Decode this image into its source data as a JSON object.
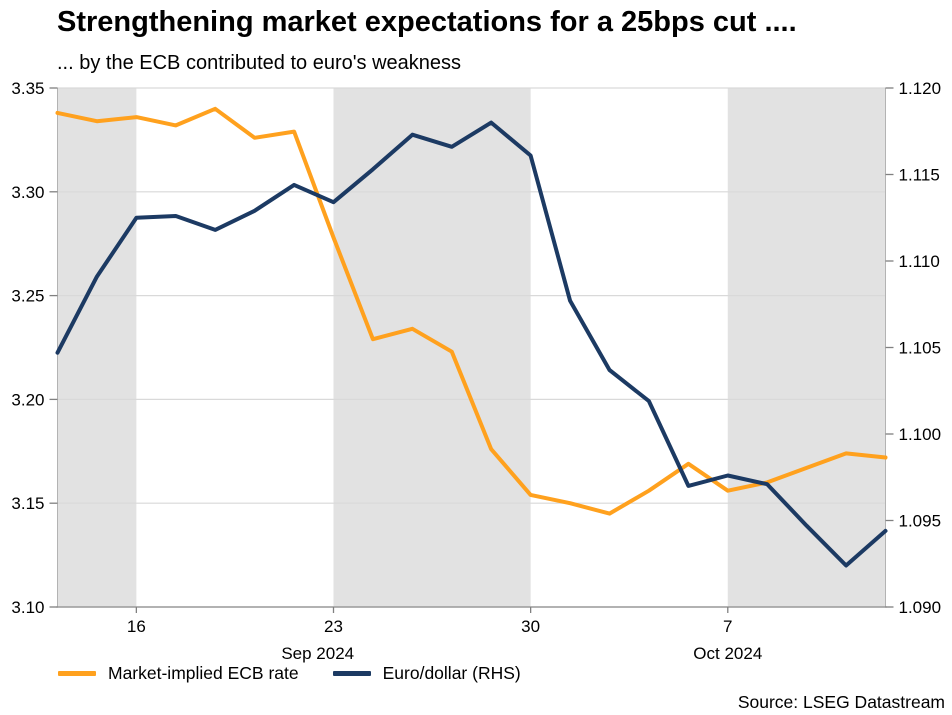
{
  "header": {
    "title": "Strengthening market expectations for a 25bps cut ....",
    "subtitle": "... by the ECB contributed to euro's weakness"
  },
  "source_text": "Source: LSEG Datastream",
  "chart_data": {
    "type": "line",
    "title": "Strengthening market expectations for a 25bps cut ....",
    "subtitle": "... by the ECB contributed to euro's weakness",
    "x": [
      "Sep 12",
      "Sep 13",
      "Sep 16",
      "Sep 17",
      "Sep 18",
      "Sep 19",
      "Sep 20",
      "Sep 23",
      "Sep 24",
      "Sep 25",
      "Sep 26",
      "Sep 27",
      "Sep 30",
      "Oct 1",
      "Oct 2",
      "Oct 3",
      "Oct 4",
      "Oct 7",
      "Oct 8",
      "Oct 9",
      "Oct 10",
      "Oct 11"
    ],
    "series": [
      {
        "name": "Market-implied ECB rate",
        "axis": "left",
        "color": "#FFA11E",
        "values": [
          3.338,
          3.334,
          3.336,
          3.332,
          3.34,
          3.326,
          3.329,
          3.278,
          3.229,
          3.234,
          3.223,
          3.176,
          3.154,
          3.15,
          3.145,
          3.156,
          3.169,
          3.156,
          3.16,
          3.167,
          3.174,
          3.172
        ]
      },
      {
        "name": "Euro/dollar (RHS)",
        "axis": "right",
        "color": "#1C3A63",
        "values": [
          1.1047,
          1.1091,
          1.1125,
          1.1126,
          1.1118,
          1.1129,
          1.1144,
          1.1134,
          1.1153,
          1.1173,
          1.1166,
          1.118,
          1.1161,
          1.1077,
          1.1037,
          1.1019,
          1.097,
          1.0976,
          1.0971,
          1.0947,
          1.0924,
          1.0944
        ]
      }
    ],
    "left_axis": {
      "min": 3.1,
      "max": 3.35,
      "ticks": [
        3.35,
        3.3,
        3.25,
        3.2,
        3.15,
        3.1
      ],
      "tick_labels": [
        "3.35",
        "3.30",
        "3.25",
        "3.20",
        "3.15",
        "3.10"
      ]
    },
    "right_axis": {
      "min": 1.09,
      "max": 1.12,
      "ticks": [
        1.12,
        1.115,
        1.11,
        1.105,
        1.1,
        1.095,
        1.09
      ],
      "tick_labels": [
        "1.120",
        "1.115",
        "1.110",
        "1.105",
        "1.100",
        "1.095",
        "1.090"
      ]
    },
    "x_tick_labels": [
      {
        "index": 2,
        "label": "16"
      },
      {
        "index": 7,
        "label": "23"
      },
      {
        "index": 12,
        "label": "30"
      },
      {
        "index": 17,
        "label": "7"
      }
    ],
    "month_labels": [
      {
        "index": 6.6,
        "label": "Sep 2024"
      },
      {
        "index": 17.0,
        "label": "Oct 2024"
      }
    ],
    "shaded_bands": [
      [
        0,
        2
      ],
      [
        7,
        12
      ],
      [
        17,
        21
      ]
    ],
    "grid": "horizontal",
    "legend_position": "bottom-left",
    "colors": {
      "band": "#e2e2e2",
      "grid": "#d9d9d9",
      "spine": "#b3b3b3",
      "axis_line": "#999999",
      "tick": "#808080"
    }
  }
}
